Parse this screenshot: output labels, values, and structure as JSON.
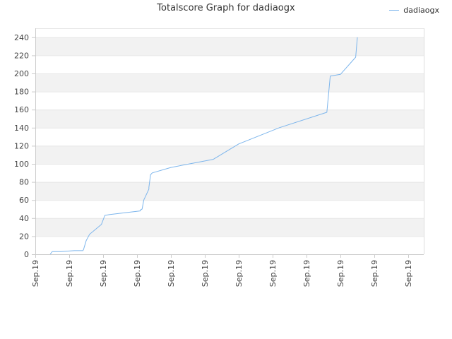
{
  "chart_data": {
    "type": "line",
    "title": "Totalscore Graph for dadiaogx",
    "xlabel": "",
    "ylabel": "",
    "x_tick_labels": [
      "Sep.19",
      "Sep.19",
      "Sep.19",
      "Sep.19",
      "Sep.19",
      "Sep.19",
      "Sep.19",
      "Sep.19",
      "Sep.19",
      "Sep.19",
      "Sep.19",
      "Sep.19"
    ],
    "ylim": [
      0,
      250
    ],
    "y_ticks": [
      0,
      20,
      40,
      60,
      80,
      100,
      120,
      140,
      160,
      180,
      200,
      220,
      240
    ],
    "grid": true,
    "legend_position": "top-right",
    "series": [
      {
        "name": "dadiaogx",
        "color": "#7cb5ec",
        "x": [
          0.44,
          0.5,
          0.75,
          1.15,
          1.4,
          1.42,
          1.5,
          1.6,
          1.95,
          2.05,
          2.2,
          3.1,
          3.1,
          3.15,
          3.2,
          3.35,
          3.35,
          3.4,
          3.45,
          4.0,
          5.25,
          6.0,
          6.0,
          7.2,
          8.6,
          8.7,
          9.0,
          9.45,
          9.5
        ],
        "y": [
          0,
          3,
          3,
          4,
          4,
          5,
          15,
          22,
          33,
          43,
          44,
          48,
          49,
          50,
          60,
          72,
          74,
          88,
          90,
          96,
          105,
          122,
          122,
          140,
          157,
          197,
          199,
          218,
          240
        ]
      }
    ]
  }
}
